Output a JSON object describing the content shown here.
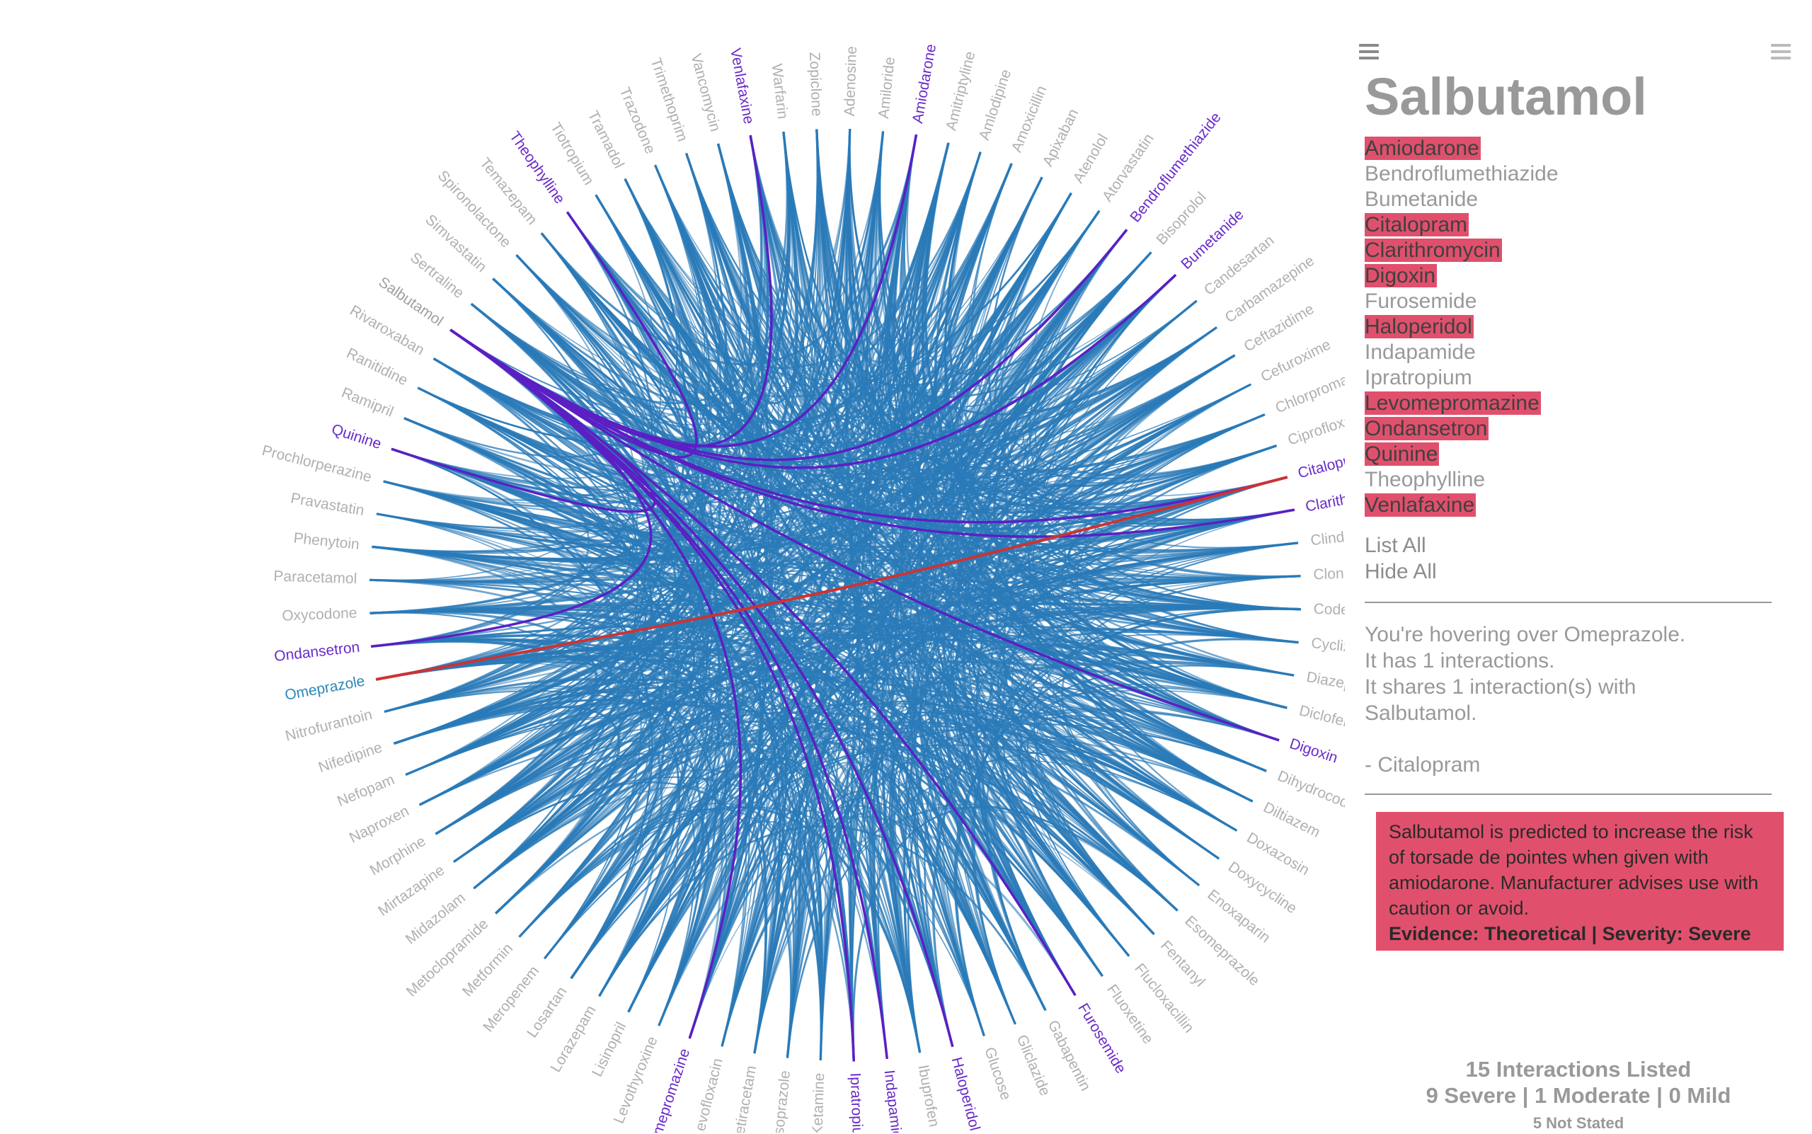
{
  "chart_data": {
    "type": "chord",
    "selected": "Salbutamol",
    "hovered": "Omeprazole",
    "nodes": [
      "Adenosine",
      "Amiloride",
      "Amiodarone",
      "Amitriptyline",
      "Amlodipine",
      "Amoxicillin",
      "Apixaban",
      "Atenolol",
      "Atorvastatin",
      "Bendroflumethiazide",
      "Bisoprolol",
      "Bumetanide",
      "Candesartan",
      "Carbamazepine",
      "Ceftazidime",
      "Cefuroxime",
      "Chlorpromazine",
      "Ciprofloxacin",
      "Citalopram",
      "Clarithromycin",
      "Clindamycin",
      "Clonazepam",
      "Codeine",
      "Cyclizine",
      "Diazepam",
      "Diclofenac",
      "Digoxin",
      "Dihydrocodeine",
      "Diltiazem",
      "Doxazosin",
      "Doxycycline",
      "Enoxaparin",
      "Esomeprazole",
      "Fentanyl",
      "Flucloxacillin",
      "Fluoxetine",
      "Furosemide",
      "Gabapentin",
      "Gliclazide",
      "Glucose",
      "Haloperidol",
      "Ibuprofen",
      "Indapamide",
      "Ipratropium",
      "Ketamine",
      "Lansoprazole",
      "Levetiracetam",
      "Levofloxacin",
      "Levomepromazine",
      "Levothyroxine",
      "Lisinopril",
      "Lorazepam",
      "Losartan",
      "Meropenem",
      "Metformin",
      "Metoclopramide",
      "Midazolam",
      "Mirtazapine",
      "Morphine",
      "Naproxen",
      "Nefopam",
      "Nifedipine",
      "Nitrofurantoin",
      "Omeprazole",
      "Ondansetron",
      "Oxycodone",
      "Paracetamol",
      "Phenytoin",
      "Pravastatin",
      "Prochlorperazine",
      "Quinine",
      "Ramipril",
      "Ranitidine",
      "Rivaroxaban",
      "Salbutamol",
      "Sertraline",
      "Simvastatin",
      "Spironolactone",
      "Temazepam",
      "Theophylline",
      "Tiotropium",
      "Tramadol",
      "Trazodone",
      "Trimethoprim",
      "Vancomycin",
      "Venlafaxine",
      "Warfarin",
      "Zopiclone"
    ],
    "label_states": {
      "Amiodarone": "partner",
      "Bendroflumethiazide": "partner",
      "Bumetanide": "partner",
      "Citalopram": "hover-partner",
      "Clarithromycin": "partner",
      "Digoxin": "partner",
      "Furosemide": "partner",
      "Haloperidol": "partner",
      "Indapamide": "partner",
      "Ipratropium": "partner",
      "Levomepromazine": "partner",
      "Ondansetron": "partner",
      "Quinine": "partner",
      "Theophylline": "partner",
      "Venlafaxine": "partner",
      "Omeprazole": "hovered",
      "Salbutamol": "selected"
    },
    "highlighted_links": [
      {
        "source": "Salbutamol",
        "target": "Amiodarone"
      },
      {
        "source": "Salbutamol",
        "target": "Bendroflumethiazide"
      },
      {
        "source": "Salbutamol",
        "target": "Bumetanide"
      },
      {
        "source": "Salbutamol",
        "target": "Citalopram"
      },
      {
        "source": "Salbutamol",
        "target": "Clarithromycin"
      },
      {
        "source": "Salbutamol",
        "target": "Digoxin"
      },
      {
        "source": "Salbutamol",
        "target": "Furosemide"
      },
      {
        "source": "Salbutamol",
        "target": "Haloperidol"
      },
      {
        "source": "Salbutamol",
        "target": "Indapamide"
      },
      {
        "source": "Salbutamol",
        "target": "Ipratropium"
      },
      {
        "source": "Salbutamol",
        "target": "Levomepromazine"
      },
      {
        "source": "Salbutamol",
        "target": "Ondansetron"
      },
      {
        "source": "Salbutamol",
        "target": "Quinine"
      },
      {
        "source": "Salbutamol",
        "target": "Theophylline"
      },
      {
        "source": "Salbutamol",
        "target": "Venlafaxine"
      },
      {
        "source": "Omeprazole",
        "target": "Citalopram",
        "hover": true
      }
    ],
    "colors": {
      "link": "#2a7ab8",
      "selected_link": "#5b1fc4",
      "hover_link": "#cc3333",
      "label": "#b0b0b0",
      "label_partner": "#6a2bc8",
      "label_hovered": "#2b86b8"
    }
  },
  "panel": {
    "title": "Salbutamol",
    "interactions": [
      {
        "name": "Amiodarone",
        "severe": true
      },
      {
        "name": "Bendroflumethiazide",
        "severe": false
      },
      {
        "name": "Bumetanide",
        "severe": false
      },
      {
        "name": "Citalopram",
        "severe": true
      },
      {
        "name": "Clarithromycin",
        "severe": true
      },
      {
        "name": "Digoxin",
        "severe": true
      },
      {
        "name": "Furosemide",
        "severe": false
      },
      {
        "name": "Haloperidol",
        "severe": true
      },
      {
        "name": "Indapamide",
        "severe": false
      },
      {
        "name": "Ipratropium",
        "severe": false
      },
      {
        "name": "Levomepromazine",
        "severe": true
      },
      {
        "name": "Ondansetron",
        "severe": true
      },
      {
        "name": "Quinine",
        "severe": true
      },
      {
        "name": "Theophylline",
        "severe": false
      },
      {
        "name": "Venlafaxine",
        "severe": true
      }
    ],
    "list_all": "List All",
    "hide_all": "Hide All",
    "hover_line1": "You're hovering over Omeprazole.",
    "hover_line2": "It has 1 interactions.",
    "hover_line3": "It shares 1 interaction(s) with",
    "hover_line4": "Salbutamol.",
    "shared_item": "- Citalopram",
    "detail_text": "Salbutamol is predicted to increase the risk of torsade de pointes when given with amiodarone. Manufacturer advises use with caution or avoid.",
    "detail_evidence": "Evidence: Theoretical | Severity: Severe"
  },
  "summary": {
    "line1": "15 Interactions Listed",
    "line2": "9 Severe | 1 Moderate | 0 Mild",
    "line3": "5 Not Stated"
  }
}
